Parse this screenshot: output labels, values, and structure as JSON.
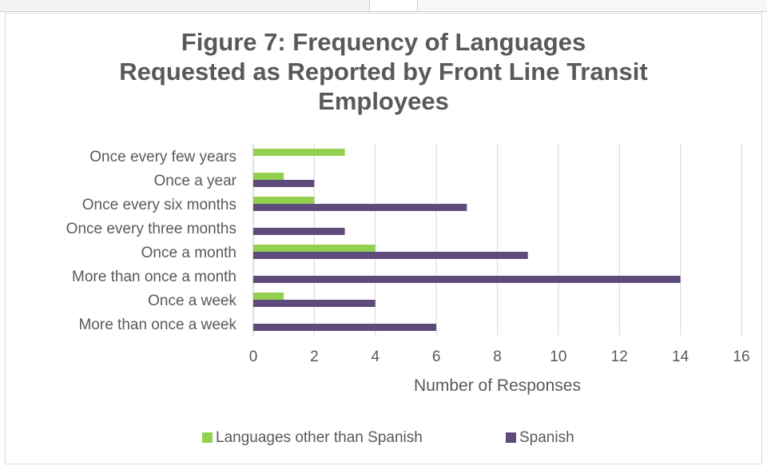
{
  "chart_data": {
    "type": "bar",
    "orientation": "horizontal",
    "title_lines": [
      "Figure 7: Frequency of Languages",
      "Requested as Reported by Front Line Transit",
      "Employees"
    ],
    "categories": [
      "Once every few years",
      "Once a year",
      "Once every six months",
      "Once every three months",
      "Once a month",
      "More than once a month",
      "Once a week",
      "More than once a week"
    ],
    "series": [
      {
        "name": "Languages other than Spanish",
        "color": "#92d050",
        "values": [
          3,
          1,
          2,
          0,
          4,
          0,
          1,
          0
        ]
      },
      {
        "name": "Spanish",
        "color": "#5f4b7b",
        "values": [
          0,
          2,
          7,
          3,
          9,
          14,
          4,
          6
        ]
      }
    ],
    "xlabel": "Number of Responses",
    "xlim": [
      0,
      16
    ],
    "xticks": [
      "0",
      "2",
      "4",
      "6",
      "8",
      "10",
      "12",
      "14",
      "16"
    ],
    "grid": true,
    "legend": "bottom"
  }
}
